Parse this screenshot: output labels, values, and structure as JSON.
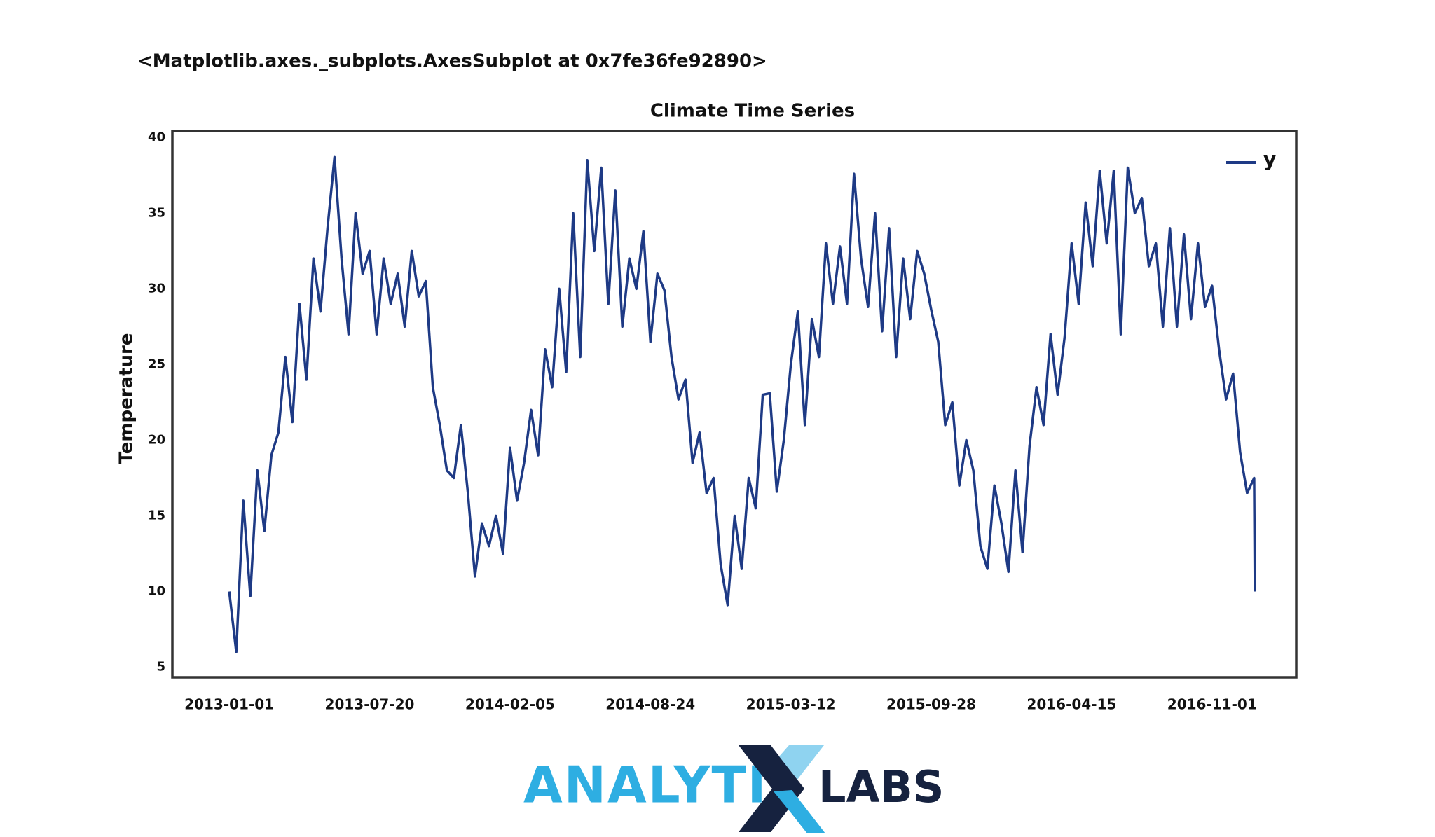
{
  "header": {
    "text": "<Matplotlib.axes._subplots.AxesSubplot at 0x7fe36fe92890>"
  },
  "chart_data": {
    "type": "line",
    "title": "Climate Time Series",
    "y_label": "Temperature",
    "x": [
      "2013-01-01",
      "2013-01-11",
      "2013-01-21",
      "2013-01-31",
      "2013-02-10",
      "2013-02-20",
      "2013-03-02",
      "2013-03-12",
      "2013-03-22",
      "2013-04-01",
      "2013-04-11",
      "2013-04-21",
      "2013-05-01",
      "2013-05-11",
      "2013-05-21",
      "2013-05-31",
      "2013-06-10",
      "2013-06-20",
      "2013-06-30",
      "2013-07-10",
      "2013-07-20",
      "2013-07-30",
      "2013-08-09",
      "2013-08-19",
      "2013-08-29",
      "2013-09-08",
      "2013-09-18",
      "2013-09-28",
      "2013-10-08",
      "2013-10-18",
      "2013-10-28",
      "2013-11-07",
      "2013-11-17",
      "2013-11-27",
      "2013-12-07",
      "2013-12-17",
      "2013-12-27",
      "2014-01-06",
      "2014-01-16",
      "2014-01-26",
      "2014-02-05",
      "2014-02-15",
      "2014-02-25",
      "2014-03-07",
      "2014-03-17",
      "2014-03-27",
      "2014-04-06",
      "2014-04-16",
      "2014-04-26",
      "2014-05-06",
      "2014-05-16",
      "2014-05-26",
      "2014-06-05",
      "2014-06-15",
      "2014-06-25",
      "2014-07-05",
      "2014-07-15",
      "2014-07-25",
      "2014-08-04",
      "2014-08-14",
      "2014-08-24",
      "2014-09-03",
      "2014-09-13",
      "2014-09-23",
      "2014-10-03",
      "2014-10-13",
      "2014-10-23",
      "2014-11-02",
      "2014-11-12",
      "2014-11-22",
      "2014-12-02",
      "2014-12-12",
      "2014-12-22",
      "2015-01-01",
      "2015-01-11",
      "2015-01-21",
      "2015-01-31",
      "2015-02-10",
      "2015-02-20",
      "2015-03-02",
      "2015-03-12",
      "2015-03-22",
      "2015-04-01",
      "2015-04-11",
      "2015-04-21",
      "2015-05-01",
      "2015-05-11",
      "2015-05-21",
      "2015-05-31",
      "2015-06-10",
      "2015-06-20",
      "2015-06-30",
      "2015-07-10",
      "2015-07-20",
      "2015-07-30",
      "2015-08-09",
      "2015-08-19",
      "2015-08-29",
      "2015-09-08",
      "2015-09-18",
      "2015-09-28",
      "2015-10-08",
      "2015-10-18",
      "2015-10-28",
      "2015-11-07",
      "2015-11-17",
      "2015-11-27",
      "2015-12-07",
      "2015-12-17",
      "2015-12-27",
      "2016-01-06",
      "2016-01-16",
      "2016-01-26",
      "2016-02-05",
      "2016-02-15",
      "2016-02-25",
      "2016-03-06",
      "2016-03-16",
      "2016-03-26",
      "2016-04-05",
      "2016-04-15",
      "2016-04-25",
      "2016-05-05",
      "2016-05-15",
      "2016-05-25",
      "2016-06-04",
      "2016-06-14",
      "2016-06-24",
      "2016-07-04",
      "2016-07-14",
      "2016-07-24",
      "2016-08-03",
      "2016-08-13",
      "2016-08-23",
      "2016-09-02",
      "2016-09-12",
      "2016-09-22",
      "2016-10-02",
      "2016-10-12",
      "2016-10-22",
      "2016-11-01",
      "2016-11-11",
      "2016-11-21",
      "2016-12-01",
      "2016-12-11",
      "2016-12-21",
      "2016-12-31",
      "2017-01-01"
    ],
    "series": [
      {
        "name": "y",
        "color": "#1e3a85",
        "values": [
          10,
          6,
          16,
          9.7,
          18,
          14,
          19,
          20.5,
          25.5,
          21.2,
          29,
          24,
          32,
          28.5,
          34,
          38.7,
          32,
          27,
          35,
          31,
          32.5,
          27,
          32,
          29,
          31,
          27.5,
          32.5,
          29.5,
          30.5,
          23.5,
          21,
          18,
          17.5,
          21,
          16.5,
          11,
          14.5,
          13,
          15,
          12.5,
          19.5,
          16,
          18.5,
          22,
          19,
          26,
          23.5,
          30,
          24.5,
          35,
          25.5,
          38.5,
          32.5,
          38,
          29,
          36.5,
          27.5,
          32,
          30,
          33.8,
          26.5,
          31,
          29.9,
          25.5,
          22.7,
          24,
          18.5,
          20.5,
          16.5,
          17.5,
          11.8,
          9.1,
          15,
          11.5,
          17.5,
          15.5,
          23,
          23.1,
          16.6,
          20,
          25,
          28.5,
          21,
          28,
          25.5,
          33,
          29,
          32.8,
          29,
          37.6,
          32,
          28.8,
          35,
          27.2,
          34,
          25.5,
          32,
          28,
          32.5,
          31,
          28.6,
          26.5,
          21,
          22.5,
          17,
          20,
          18,
          13,
          11.5,
          17,
          14.5,
          11.3,
          18,
          12.6,
          19.6,
          23.5,
          21,
          27,
          23,
          26.8,
          33,
          29,
          35.7,
          31.5,
          37.8,
          33,
          37.8,
          27,
          38,
          35,
          36,
          31.5,
          33,
          27.5,
          34,
          27.5,
          33.6,
          28,
          33,
          28.8,
          30.2,
          26,
          22.7,
          24.4,
          19.2,
          16.5,
          17.5,
          10
        ]
      }
    ],
    "xlim": [
      "2012-10-12",
      "2017-03-01"
    ],
    "xticks": [
      "2013-01-01",
      "2013-07-20",
      "2014-02-05",
      "2014-08-24",
      "2015-03-12",
      "2015-09-28",
      "2016-04-15",
      "2016-11-01"
    ],
    "ylim": [
      4.33,
      40.43
    ],
    "yticks": [
      5,
      10,
      15,
      20,
      25,
      30,
      35,
      40
    ],
    "legend": "upper right"
  },
  "logo": {
    "left": "ANALYTI",
    "right": "LABS"
  }
}
